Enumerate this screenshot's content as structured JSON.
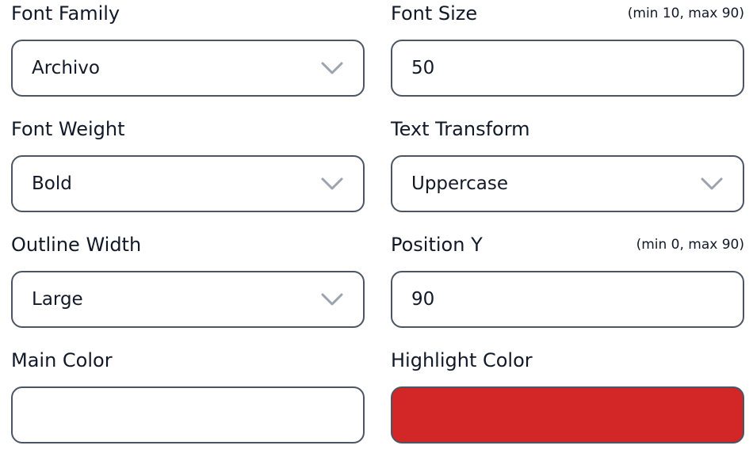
{
  "fields": [
    {
      "label": "Font Family",
      "type": "select",
      "value": "Archivo"
    },
    {
      "label": "Font Size",
      "type": "number",
      "value": "50",
      "hint": "(min 10, max 90)"
    },
    {
      "label": "Font Weight",
      "type": "select",
      "value": "Bold"
    },
    {
      "label": "Text Transform",
      "type": "select",
      "value": "Uppercase"
    },
    {
      "label": "Outline Width",
      "type": "select",
      "value": "Large"
    },
    {
      "label": "Position Y",
      "type": "number",
      "value": "90",
      "hint": "(min 0, max 90)"
    },
    {
      "label": "Main Color",
      "type": "color",
      "color": "#ffffff"
    },
    {
      "label": "Highlight Color",
      "type": "color",
      "color": "#d32626"
    }
  ],
  "colors": {
    "border": "#4b5563",
    "chevron": "#9ca3af"
  }
}
